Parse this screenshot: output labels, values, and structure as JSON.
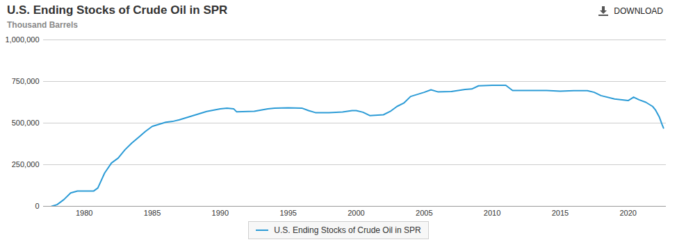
{
  "chart_data": {
    "type": "line",
    "title": "U.S. Ending Stocks of Crude Oil in SPR",
    "subtitle": "Thousand Barrels",
    "annotations": [
      "DOWNLOAD"
    ],
    "x": [
      1977.6,
      1978,
      1978.5,
      1979,
      1979.5,
      1980,
      1980.7,
      1981,
      1981.5,
      1982,
      1982.5,
      1983,
      1983.5,
      1984,
      1984.5,
      1985,
      1985.5,
      1986,
      1986.5,
      1987,
      1988,
      1989,
      1990,
      1990.5,
      1991,
      1991.2,
      1992.5,
      1993.5,
      1994,
      1995,
      1996,
      1996.5,
      1997,
      1998,
      1999,
      1999.7,
      2000,
      2000.5,
      2001,
      2002,
      2002.5,
      2003,
      2003.5,
      2004,
      2005,
      2005.5,
      2006,
      2007,
      2008,
      2008.5,
      2009,
      2010,
      2011,
      2011.5,
      2013,
      2014,
      2015,
      2016,
      2017,
      2017.5,
      2018,
      2019,
      2020,
      2020.4,
      2020.8,
      2021.3,
      2021.8,
      2022,
      2022.3,
      2022.5,
      2022.6
    ],
    "series": [
      {
        "name": "U.S. Ending Stocks of Crude Oil in SPR",
        "color": "#2b9bd6",
        "values": [
          0,
          10000,
          40000,
          80000,
          92000,
          92000,
          92000,
          110000,
          200000,
          260000,
          290000,
          340000,
          380000,
          415000,
          450000,
          480000,
          493000,
          505000,
          510000,
          520000,
          545000,
          570000,
          585000,
          590000,
          585000,
          568000,
          571000,
          585000,
          590000,
          592000,
          590000,
          575000,
          563000,
          563000,
          567000,
          575000,
          575000,
          565000,
          545000,
          550000,
          570000,
          600000,
          620000,
          660000,
          685000,
          700000,
          688000,
          690000,
          702000,
          705000,
          724000,
          727000,
          727000,
          696000,
          696000,
          696000,
          692000,
          695000,
          695000,
          685000,
          665000,
          645000,
          635000,
          656000,
          640000,
          625000,
          600000,
          580000,
          535000,
          490000,
          470000
        ]
      }
    ],
    "xlim": [
      1977,
      2022.8
    ],
    "xticks": [
      1980,
      1985,
      1990,
      1995,
      2000,
      2005,
      2010,
      2015,
      2020
    ],
    "ylim": [
      0,
      1000000
    ],
    "yticks": [
      0,
      {
        "value": 250000,
        "label": "250,000"
      },
      {
        "value": 500000,
        "label": "500,000"
      },
      {
        "value": 750000,
        "label": "750,000"
      },
      {
        "value": 1000000,
        "label": "1,000,000"
      }
    ],
    "grid": true,
    "legend": "bottom"
  }
}
